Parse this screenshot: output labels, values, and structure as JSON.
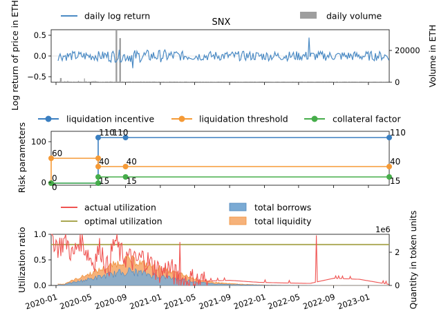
{
  "chart_data": [
    {
      "type": "line",
      "title": "SNX",
      "ylabel": "Log return of price in ETH",
      "ylabel_right": "Volume in ETH",
      "ylim": [
        -0.6,
        0.6
      ],
      "ylim_right": [
        0,
        50000
      ],
      "yticks": [
        -0.5,
        0.0,
        0.5
      ],
      "yticks_labels": [
        "−0.5",
        "0.0",
        "0.5"
      ],
      "yticks_right": [
        0,
        20000
      ],
      "legend": [
        {
          "label": "daily log return",
          "color": "#4a8ac4",
          "kind": "line"
        },
        {
          "label": "daily volume",
          "color": "#9e9e9e",
          "kind": "patch"
        }
      ],
      "series": [
        {
          "name": "daily log return",
          "color": "#4a8ac4",
          "x_range": [
            "2019-12-15",
            "2023-03-15"
          ],
          "typical_range": [
            -0.1,
            0.1
          ],
          "spikes": [
            {
              "x": "2022-06-05",
              "y": 0.42
            },
            {
              "x": "2020-09-25",
              "y": -0.28
            }
          ]
        },
        {
          "name": "daily volume",
          "color": "#9e9e9e",
          "peaks": [
            {
              "x": "2020-07-28",
              "y": 50000
            },
            {
              "x": "2020-08-10",
              "y": 42000
            },
            {
              "x": "2020-01-15",
              "y": 4000
            }
          ]
        }
      ]
    },
    {
      "type": "line",
      "ylabel": "Risk parameters",
      "ylim": [
        -5,
        125
      ],
      "yticks": [
        0,
        100
      ],
      "legend": [
        {
          "label": "liquidation incentive",
          "color": "#3a7fc1"
        },
        {
          "label": "liquidation threshold",
          "color": "#f59a36"
        },
        {
          "label": "collateral factor",
          "color": "#46ad4a"
        }
      ],
      "series": [
        {
          "name": "liquidation incentive",
          "color": "#3a7fc1",
          "points": [
            {
              "x": "2019-12-15",
              "y": 0
            },
            {
              "x": "2020-05-28",
              "y": 0
            },
            {
              "x": "2020-05-28",
              "y": 110
            },
            {
              "x": "2020-09-01",
              "y": 110
            },
            {
              "x": "2023-03-15",
              "y": 110
            }
          ]
        },
        {
          "name": "liquidation threshold",
          "color": "#f59a36",
          "points": [
            {
              "x": "2019-12-15",
              "y": 0
            },
            {
              "x": "2019-12-15",
              "y": 60
            },
            {
              "x": "2020-05-28",
              "y": 60
            },
            {
              "x": "2020-05-28",
              "y": 40
            },
            {
              "x": "2020-09-01",
              "y": 40
            },
            {
              "x": "2023-03-15",
              "y": 40
            }
          ]
        },
        {
          "name": "collateral factor",
          "color": "#46ad4a",
          "points": [
            {
              "x": "2019-12-15",
              "y": 0
            },
            {
              "x": "2020-05-28",
              "y": 0
            },
            {
              "x": "2020-05-28",
              "y": 15
            },
            {
              "x": "2020-09-01",
              "y": 15
            },
            {
              "x": "2023-03-15",
              "y": 15
            }
          ]
        }
      ],
      "annotations": [
        {
          "text": "0",
          "x": "2019-12-15",
          "y": 0,
          "pos": "above-right"
        },
        {
          "text": "0",
          "x": "2019-12-15",
          "y": 0,
          "pos": "below-right"
        },
        {
          "text": "60",
          "x": "2019-12-15",
          "y": 60,
          "pos": "above-right"
        },
        {
          "text": "110",
          "x": "2020-05-28",
          "y": 110,
          "pos": "right"
        },
        {
          "text": "110",
          "x": "2020-09-01",
          "y": 110,
          "pos": "left"
        },
        {
          "text": "40",
          "x": "2020-05-28",
          "y": 40,
          "pos": "above-right"
        },
        {
          "text": "40",
          "x": "2020-09-01",
          "y": 40,
          "pos": "above-right"
        },
        {
          "text": "15",
          "x": "2020-05-28",
          "y": 15,
          "pos": "below-right"
        },
        {
          "text": "15",
          "x": "2020-09-01",
          "y": 15,
          "pos": "below-right"
        },
        {
          "text": "110",
          "x": "2023-03-15",
          "y": 110,
          "pos": "above-right"
        },
        {
          "text": "40",
          "x": "2023-03-15",
          "y": 40,
          "pos": "above-right"
        },
        {
          "text": "15",
          "x": "2023-03-15",
          "y": 15,
          "pos": "below-right"
        }
      ]
    },
    {
      "type": "area",
      "ylabel": "Utilization ratio",
      "ylabel_right": "Quantity in token units",
      "ylim": [
        0,
        1.0
      ],
      "yticks": [
        0.0,
        0.5,
        1.0
      ],
      "yticks_labels": [
        "0.0",
        "0.5",
        "1.0"
      ],
      "ylim_right": [
        0,
        2700000
      ],
      "yticks_right": [
        0,
        2
      ],
      "right_offset_label": "1e6",
      "xlabel": "",
      "xticks": [
        "2020-01",
        "2020-05",
        "2020-09",
        "2021-01",
        "2021-05",
        "2021-09",
        "2022-01",
        "2022-05",
        "2022-09",
        "2023-01"
      ],
      "legend": [
        {
          "label": "actual utilization",
          "color": "#ef5250",
          "kind": "line"
        },
        {
          "label": "optimal utilization",
          "color": "#a9a650",
          "kind": "line"
        },
        {
          "label": "total borrows",
          "color": "#7aaad4",
          "kind": "patch"
        },
        {
          "label": "total liquidity",
          "color": "#f6b27a",
          "kind": "patch"
        }
      ],
      "series": [
        {
          "name": "optimal utilization",
          "color": "#a9a650",
          "values": [
            {
              "x": "2019-12-15",
              "y": 0.8
            },
            {
              "x": "2023-03-15",
              "y": 0.8
            }
          ]
        },
        {
          "name": "actual utilization",
          "color": "#ef5250",
          "points": [
            {
              "x": "2019-12-15",
              "y": 1.0
            },
            {
              "x": "2020-01-10",
              "y": 0.75
            },
            {
              "x": "2020-02-05",
              "y": 0.9
            },
            {
              "x": "2020-03-01",
              "y": 0.55
            },
            {
              "x": "2020-03-25",
              "y": 0.95
            },
            {
              "x": "2020-04-15",
              "y": 0.7
            },
            {
              "x": "2020-05-10",
              "y": 0.45
            },
            {
              "x": "2020-06-05",
              "y": 0.75
            },
            {
              "x": "2020-07-01",
              "y": 0.3
            },
            {
              "x": "2020-07-25",
              "y": 0.9
            },
            {
              "x": "2020-08-15",
              "y": 0.6
            },
            {
              "x": "2020-09-10",
              "y": 0.55
            },
            {
              "x": "2020-10-05",
              "y": 0.45
            },
            {
              "x": "2020-11-01",
              "y": 0.55
            },
            {
              "x": "2020-12-01",
              "y": 0.4
            },
            {
              "x": "2021-01-05",
              "y": 0.25
            },
            {
              "x": "2021-02-01",
              "y": 0.35
            },
            {
              "x": "2021-03-01",
              "y": 0.15
            },
            {
              "x": "2021-03-25",
              "y": 0.08
            },
            {
              "x": "2021-04-15",
              "y": 0.12
            },
            {
              "x": "2021-05-20",
              "y": 0.08
            },
            {
              "x": "2021-09-01",
              "y": 0.1
            },
            {
              "x": "2021-12-15",
              "y": 0.06
            },
            {
              "x": "2022-03-01",
              "y": 0.05
            },
            {
              "x": "2022-06-10",
              "y": 0.04
            },
            {
              "x": "2022-09-01",
              "y": 0.14
            },
            {
              "x": "2022-12-01",
              "y": 0.12
            },
            {
              "x": "2023-03-15",
              "y": 0.02
            }
          ],
          "spikes": [
            {
              "x": "2021-03-10",
              "y": 0.85
            },
            {
              "x": "2022-07-02",
              "y": 0.98
            }
          ]
        },
        {
          "name": "total liquidity",
          "color": "#f6b27a",
          "units": "token",
          "peak": {
            "x": "2020-09-10",
            "y": 1500000
          }
        },
        {
          "name": "total borrows",
          "color": "#7aaad4",
          "units": "token",
          "peak": {
            "x": "2020-09-10",
            "y": 950000
          }
        }
      ]
    }
  ]
}
